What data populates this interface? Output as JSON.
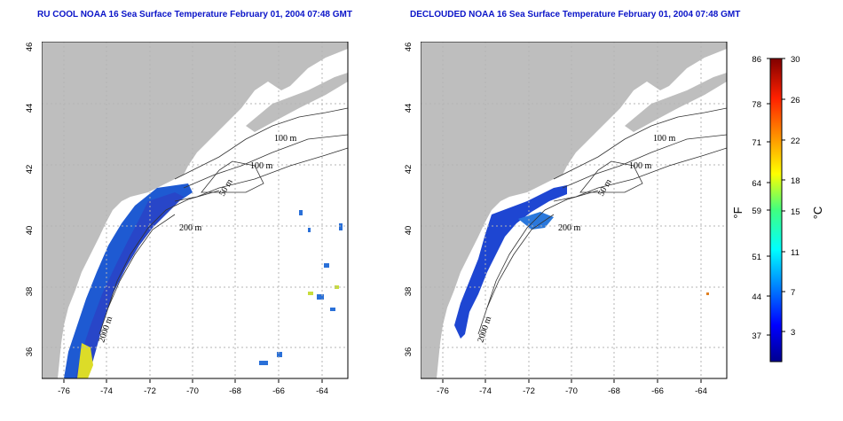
{
  "panels": [
    {
      "title": "RU COOL NOAA 16 Sea Surface Temperature February 01, 2004 07:48 GMT"
    },
    {
      "title": "DECLOUDED NOAA 16 Sea Surface Temperature February 01, 2004 07:48 GMT"
    }
  ],
  "x_ticks": [
    "-76",
    "-74",
    "-72",
    "-70",
    "-68",
    "-66",
    "-64"
  ],
  "y_ticks": [
    "36",
    "38",
    "40",
    "42",
    "44",
    "46"
  ],
  "contour_labels": [
    "100 m",
    "100 m",
    "50 m",
    "200 m",
    "2000 m"
  ],
  "colorbar": {
    "left_unit": "°F",
    "right_unit": "°C",
    "f_ticks": [
      "86",
      "78",
      "71",
      "64",
      "59",
      "51",
      "44",
      "37"
    ],
    "c_ticks": [
      "30",
      "26",
      "22",
      "18",
      "15",
      "11",
      "7",
      "3"
    ]
  },
  "colors": {
    "title": "#0a14c8",
    "land": "#bebebe",
    "grid": "#b4b4b4"
  }
}
